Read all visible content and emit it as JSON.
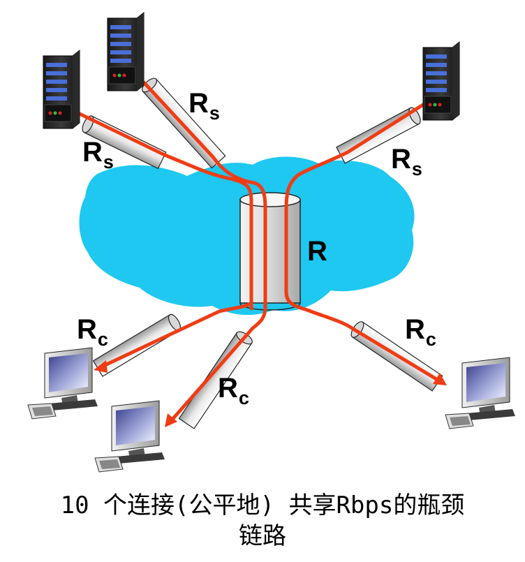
{
  "labels": {
    "server_link": {
      "main": "R",
      "sub": "s"
    },
    "client_link": {
      "main": "R",
      "sub": "c"
    },
    "bottleneck": "R"
  },
  "caption": {
    "line1": "10 个连接(公平地) 共享Rbps的瓶颈",
    "line2": "链路"
  },
  "colors": {
    "cloud": "#1ec8f0",
    "flow": "#f03c14",
    "pipe": "#e6e6e6"
  },
  "icons": [
    "server-icon",
    "computer-icon",
    "link-pipe-icon",
    "network-cloud"
  ]
}
